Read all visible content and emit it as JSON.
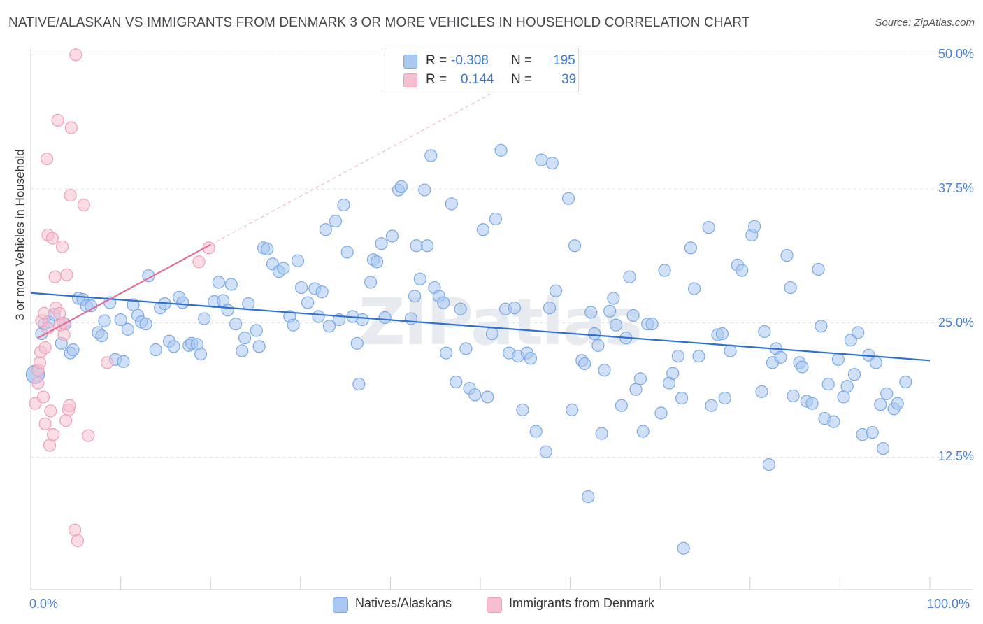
{
  "title": "NATIVE/ALASKAN VS IMMIGRANTS FROM DENMARK 3 OR MORE VEHICLES IN HOUSEHOLD CORRELATION CHART",
  "source": "Source: ZipAtlas.com",
  "watermark": "ZIPatlas",
  "legend": {
    "r_label": "R =",
    "n_label": "N =",
    "series1": {
      "r": "-0.308",
      "n": "195"
    },
    "series2": {
      "r": "0.144",
      "n": "39"
    }
  },
  "colors": {
    "blue_fill": "#a9c8f0",
    "blue_stroke": "#7aa8e6",
    "blue_line": "#2f6fcf",
    "pink_fill": "#f6bfcf",
    "pink_stroke": "#ee9fb6",
    "pink_line": "#e0709a",
    "tick_text": "#4a7fd0"
  },
  "chart_data": {
    "type": "scatter",
    "title": "NATIVE/ALASKAN VS IMMIGRANTS FROM DENMARK 3 OR MORE VEHICLES IN HOUSEHOLD CORRELATION CHART",
    "xlabel": "",
    "ylabel": "3 or more Vehicles in Household",
    "xlim": [
      0,
      100
    ],
    "ylim": [
      0,
      51
    ],
    "x_tick_labels": [
      "0.0%",
      "100.0%"
    ],
    "y_ticks": [
      12.5,
      25.0,
      37.5,
      50.0
    ],
    "y_tick_labels": [
      "12.5%",
      "25.0%",
      "37.5%",
      "50.0%"
    ],
    "grid": true,
    "legend_position": "top-center",
    "series": [
      {
        "name": "Natives/Alaskans",
        "r": -0.308,
        "n": 195,
        "trend": {
          "x": [
            0,
            100
          ],
          "y": [
            27.8,
            21.5
          ]
        },
        "points": [
          [
            0.5,
            20.2
          ],
          [
            0.5,
            20.2
          ],
          [
            1.2,
            24.0
          ],
          [
            1.5,
            24.9
          ],
          [
            2.0,
            25.1
          ],
          [
            2.6,
            25.8
          ],
          [
            3.4,
            23.1
          ],
          [
            3.8,
            24.9
          ],
          [
            4.4,
            22.2
          ],
          [
            4.7,
            22.5
          ],
          [
            5.3,
            27.3
          ],
          [
            5.8,
            27.2
          ],
          [
            6.2,
            26.6
          ],
          [
            6.7,
            26.6
          ],
          [
            7.5,
            24.1
          ],
          [
            7.9,
            23.8
          ],
          [
            8.2,
            25.2
          ],
          [
            8.8,
            26.9
          ],
          [
            9.4,
            21.6
          ],
          [
            10.0,
            25.3
          ],
          [
            10.3,
            21.4
          ],
          [
            10.8,
            24.4
          ],
          [
            11.4,
            26.7
          ],
          [
            11.9,
            25.7
          ],
          [
            12.3,
            25.1
          ],
          [
            12.8,
            24.9
          ],
          [
            13.1,
            29.4
          ],
          [
            13.9,
            22.5
          ],
          [
            14.4,
            26.4
          ],
          [
            14.9,
            26.8
          ],
          [
            15.4,
            23.3
          ],
          [
            15.9,
            22.8
          ],
          [
            16.5,
            27.4
          ],
          [
            16.9,
            26.9
          ],
          [
            17.6,
            22.9
          ],
          [
            17.9,
            23.1
          ],
          [
            18.5,
            23.0
          ],
          [
            18.9,
            22.1
          ],
          [
            19.3,
            25.4
          ],
          [
            20.4,
            27.0
          ],
          [
            20.9,
            28.8
          ],
          [
            21.4,
            27.1
          ],
          [
            21.9,
            26.2
          ],
          [
            22.3,
            28.6
          ],
          [
            22.8,
            24.9
          ],
          [
            23.5,
            22.4
          ],
          [
            23.8,
            23.6
          ],
          [
            24.2,
            26.8
          ],
          [
            25.1,
            24.3
          ],
          [
            25.4,
            22.8
          ],
          [
            25.9,
            32.0
          ],
          [
            26.3,
            31.9
          ],
          [
            26.9,
            30.5
          ],
          [
            27.6,
            29.8
          ],
          [
            28.1,
            30.1
          ],
          [
            28.8,
            25.6
          ],
          [
            29.2,
            24.8
          ],
          [
            29.7,
            30.8
          ],
          [
            30.1,
            28.3
          ],
          [
            30.8,
            26.9
          ],
          [
            31.6,
            28.2
          ],
          [
            32.0,
            25.6
          ],
          [
            32.4,
            27.9
          ],
          [
            32.8,
            33.7
          ],
          [
            33.2,
            24.7
          ],
          [
            33.9,
            34.5
          ],
          [
            34.3,
            25.3
          ],
          [
            34.8,
            36.0
          ],
          [
            35.2,
            31.6
          ],
          [
            35.8,
            25.6
          ],
          [
            36.3,
            23.1
          ],
          [
            36.5,
            19.3
          ],
          [
            36.9,
            25.3
          ],
          [
            37.8,
            28.8
          ],
          [
            38.1,
            30.9
          ],
          [
            38.5,
            30.7
          ],
          [
            39.0,
            32.4
          ],
          [
            39.4,
            25.5
          ],
          [
            40.2,
            33.1
          ],
          [
            40.9,
            37.4
          ],
          [
            41.2,
            37.7
          ],
          [
            42.3,
            25.4
          ],
          [
            42.7,
            27.5
          ],
          [
            42.9,
            32.2
          ],
          [
            43.3,
            29.1
          ],
          [
            43.8,
            37.4
          ],
          [
            44.1,
            32.2
          ],
          [
            44.5,
            40.6
          ],
          [
            44.9,
            28.3
          ],
          [
            45.4,
            27.5
          ],
          [
            45.9,
            26.9
          ],
          [
            46.2,
            22.2
          ],
          [
            46.8,
            36.1
          ],
          [
            47.3,
            19.5
          ],
          [
            47.8,
            26.3
          ],
          [
            48.4,
            22.6
          ],
          [
            48.8,
            18.9
          ],
          [
            49.4,
            18.3
          ],
          [
            50.3,
            33.7
          ],
          [
            50.8,
            18.1
          ],
          [
            51.3,
            24.0
          ],
          [
            51.7,
            34.7
          ],
          [
            52.3,
            41.1
          ],
          [
            52.8,
            26.3
          ],
          [
            53.2,
            22.2
          ],
          [
            53.8,
            26.4
          ],
          [
            54.2,
            21.9
          ],
          [
            54.7,
            16.9
          ],
          [
            55.2,
            22.2
          ],
          [
            55.6,
            21.7
          ],
          [
            56.2,
            14.9
          ],
          [
            56.8,
            40.2
          ],
          [
            57.3,
            13.0
          ],
          [
            57.7,
            26.4
          ],
          [
            58.0,
            39.9
          ],
          [
            58.4,
            28.0
          ],
          [
            59.8,
            36.6
          ],
          [
            60.2,
            16.9
          ],
          [
            60.5,
            32.2
          ],
          [
            61.3,
            21.5
          ],
          [
            61.6,
            21.2
          ],
          [
            62.0,
            8.8
          ],
          [
            62.3,
            26.0
          ],
          [
            62.7,
            24.0
          ],
          [
            63.1,
            22.9
          ],
          [
            63.5,
            14.7
          ],
          [
            63.8,
            20.6
          ],
          [
            64.4,
            26.1
          ],
          [
            64.8,
            27.3
          ],
          [
            65.1,
            24.8
          ],
          [
            65.7,
            17.3
          ],
          [
            66.2,
            23.6
          ],
          [
            66.6,
            29.3
          ],
          [
            67.0,
            25.7
          ],
          [
            67.3,
            18.8
          ],
          [
            67.8,
            19.8
          ],
          [
            68.1,
            14.9
          ],
          [
            68.6,
            24.9
          ],
          [
            69.1,
            24.9
          ],
          [
            70.1,
            16.6
          ],
          [
            70.5,
            29.9
          ],
          [
            71.0,
            19.4
          ],
          [
            71.4,
            20.3
          ],
          [
            72.0,
            21.9
          ],
          [
            72.4,
            18.0
          ],
          [
            72.6,
            4.0
          ],
          [
            73.4,
            32.0
          ],
          [
            73.8,
            28.2
          ],
          [
            74.3,
            21.9
          ],
          [
            75.4,
            33.9
          ],
          [
            75.7,
            17.3
          ],
          [
            76.4,
            23.9
          ],
          [
            76.9,
            24.0
          ],
          [
            77.2,
            18.0
          ],
          [
            77.8,
            22.4
          ],
          [
            78.6,
            30.4
          ],
          [
            79.1,
            29.9
          ],
          [
            80.2,
            33.2
          ],
          [
            80.5,
            34.0
          ],
          [
            81.3,
            18.6
          ],
          [
            81.6,
            24.2
          ],
          [
            82.1,
            11.8
          ],
          [
            82.5,
            21.3
          ],
          [
            82.9,
            22.6
          ],
          [
            83.4,
            21.8
          ],
          [
            84.1,
            31.3
          ],
          [
            84.5,
            28.3
          ],
          [
            84.8,
            18.2
          ],
          [
            85.5,
            21.3
          ],
          [
            85.8,
            20.9
          ],
          [
            86.3,
            17.7
          ],
          [
            86.9,
            17.5
          ],
          [
            87.6,
            30.0
          ],
          [
            87.9,
            24.7
          ],
          [
            88.3,
            16.1
          ],
          [
            88.7,
            19.3
          ],
          [
            89.3,
            15.8
          ],
          [
            89.8,
            21.6
          ],
          [
            90.4,
            18.1
          ],
          [
            90.8,
            19.1
          ],
          [
            91.2,
            23.4
          ],
          [
            91.6,
            20.2
          ],
          [
            92.0,
            24.1
          ],
          [
            92.5,
            14.6
          ],
          [
            93.2,
            22.0
          ],
          [
            93.6,
            14.8
          ],
          [
            94.0,
            21.3
          ],
          [
            94.5,
            17.4
          ],
          [
            94.8,
            13.3
          ],
          [
            95.2,
            18.4
          ],
          [
            96.0,
            17.0
          ],
          [
            96.4,
            17.5
          ],
          [
            97.3,
            19.5
          ]
        ]
      },
      {
        "name": "Immigrants from Denmark",
        "r": 0.144,
        "n": 39,
        "trend": {
          "x": [
            0.8,
            20
          ],
          "y": [
            23.6,
            32.3
          ]
        },
        "trend_extension": {
          "x": [
            20,
            53
          ],
          "y": [
            32.3,
            47.2
          ]
        },
        "points": [
          [
            0.5,
            17.5
          ],
          [
            0.8,
            19.4
          ],
          [
            0.8,
            20.6
          ],
          [
            1.0,
            21.3
          ],
          [
            1.1,
            22.3
          ],
          [
            1.2,
            25.2
          ],
          [
            1.4,
            18.1
          ],
          [
            1.5,
            25.9
          ],
          [
            1.6,
            22.7
          ],
          [
            1.6,
            15.6
          ],
          [
            1.8,
            40.3
          ],
          [
            1.9,
            33.2
          ],
          [
            1.9,
            24.5
          ],
          [
            2.1,
            13.6
          ],
          [
            2.2,
            16.8
          ],
          [
            2.4,
            32.9
          ],
          [
            2.5,
            14.6
          ],
          [
            2.7,
            29.3
          ],
          [
            2.8,
            26.4
          ],
          [
            3.0,
            43.9
          ],
          [
            3.2,
            25.9
          ],
          [
            3.3,
            24.8
          ],
          [
            3.5,
            32.1
          ],
          [
            3.6,
            25.0
          ],
          [
            3.7,
            23.9
          ],
          [
            3.9,
            15.9
          ],
          [
            4.0,
            29.5
          ],
          [
            4.2,
            16.9
          ],
          [
            4.3,
            17.3
          ],
          [
            4.4,
            36.9
          ],
          [
            4.5,
            43.2
          ],
          [
            4.9,
            5.7
          ],
          [
            5.0,
            50.0
          ],
          [
            5.2,
            4.7
          ],
          [
            5.9,
            36.0
          ],
          [
            6.4,
            14.5
          ],
          [
            8.5,
            21.3
          ],
          [
            18.7,
            30.7
          ],
          [
            19.8,
            32.0
          ]
        ]
      }
    ]
  },
  "bottom_legend": {
    "item1": "Natives/Alaskans",
    "item2": "Immigrants from Denmark"
  }
}
